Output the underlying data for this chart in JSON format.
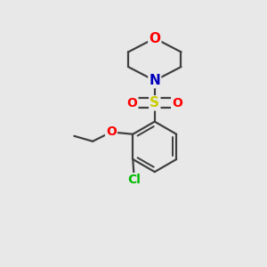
{
  "bg_color": "#e8e8e8",
  "atom_colors": {
    "O": "#ff0000",
    "N": "#0000bb",
    "S": "#cccc00",
    "Cl": "#00bb00",
    "C": "#404040"
  },
  "bond_color": "#404040",
  "bond_width": 1.6,
  "font_size_atoms": 11,
  "fig_width": 3.0,
  "fig_height": 3.0,
  "dpi": 100
}
